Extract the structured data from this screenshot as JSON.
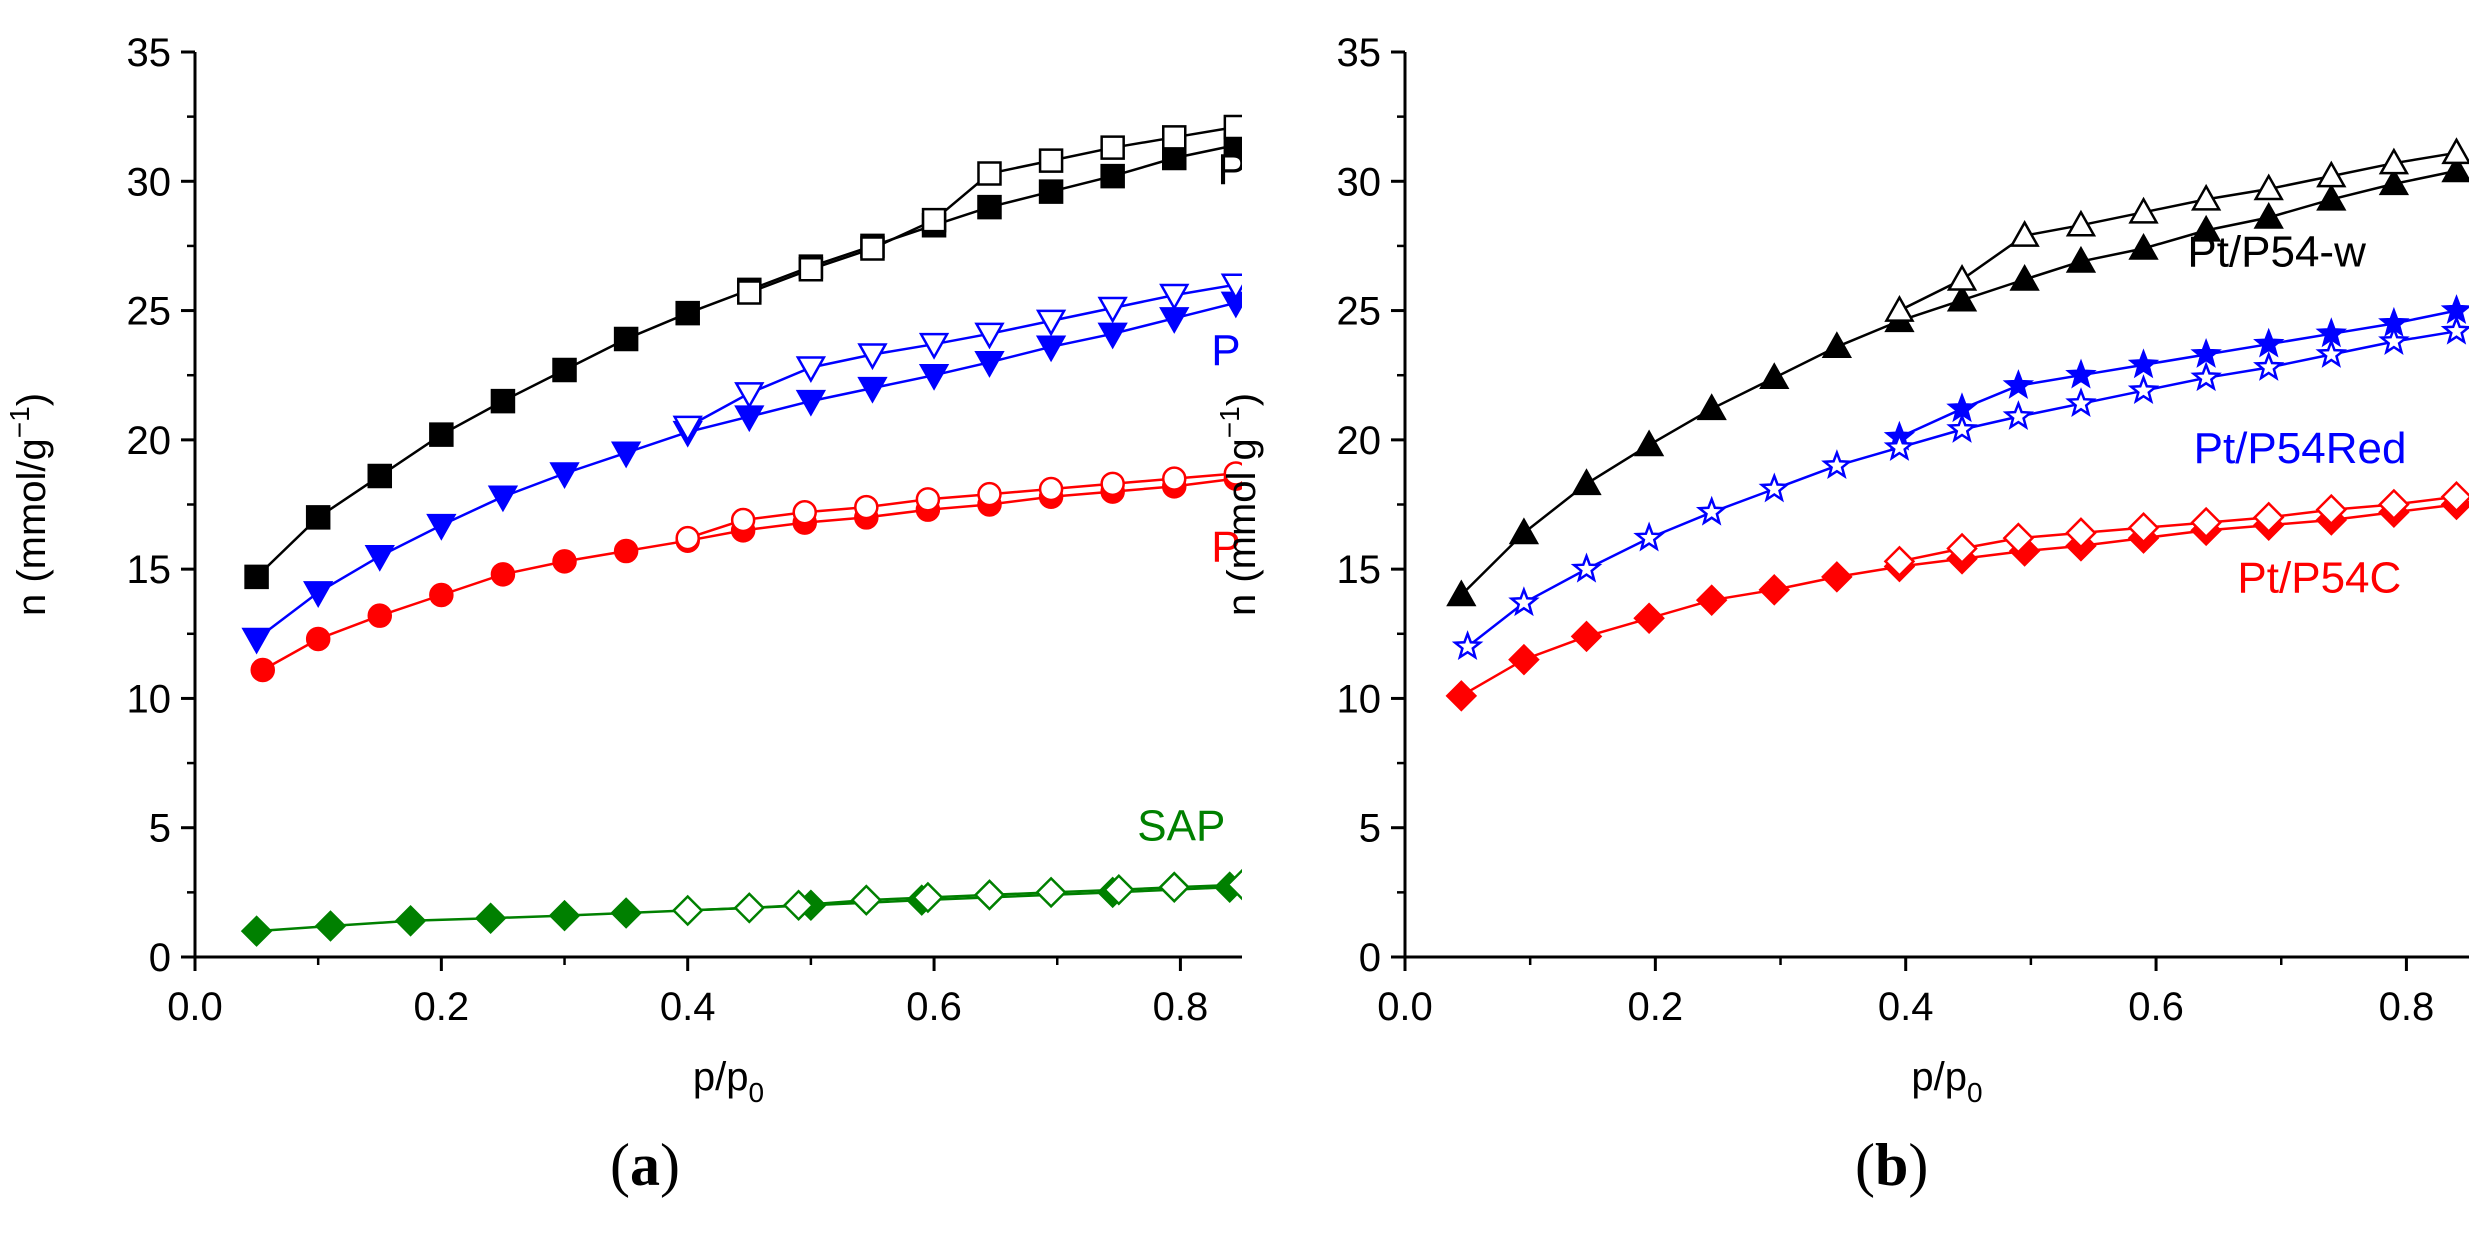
{
  "chart_data": [
    {
      "type": "line",
      "panel_label": "a",
      "xlabel": "p/p",
      "xlabel_sub": "0",
      "ylabel": "n (mmol/g",
      "ylabel_sup": "−1",
      "ylabel_close": ")",
      "xlim": [
        0.0,
        0.85
      ],
      "ylim": [
        0,
        35
      ],
      "xticks": [
        "0.0",
        "0.2",
        "0.4",
        "0.6",
        "0.8"
      ],
      "yticks": [
        "0",
        "5",
        "10",
        "15",
        "20",
        "25",
        "30",
        "35"
      ],
      "series": [
        {
          "name": "black-adsorption",
          "color": "#000000",
          "marker": "square",
          "filled": true,
          "x": [
            0.05,
            0.1,
            0.15,
            0.2,
            0.25,
            0.3,
            0.35,
            0.4,
            0.45,
            0.5,
            0.55,
            0.6,
            0.645,
            0.695,
            0.745,
            0.795,
            0.845
          ],
          "y": [
            14.7,
            17.0,
            18.6,
            20.2,
            21.5,
            22.7,
            23.9,
            24.9,
            25.8,
            26.7,
            27.5,
            28.3,
            29.0,
            29.6,
            30.2,
            30.9,
            31.4
          ]
        },
        {
          "name": "black-desorption",
          "color": "#000000",
          "marker": "square",
          "filled": false,
          "x": [
            0.45,
            0.5,
            0.55,
            0.6,
            0.645,
            0.695,
            0.745,
            0.795,
            0.845
          ],
          "y": [
            25.7,
            26.6,
            27.4,
            28.5,
            30.3,
            30.8,
            31.3,
            31.7,
            32.1
          ]
        },
        {
          "name": "blue-adsorption",
          "color": "#0000ff",
          "marker": "triangle-down",
          "filled": true,
          "x": [
            0.05,
            0.1,
            0.15,
            0.2,
            0.25,
            0.3,
            0.35,
            0.4,
            0.45,
            0.5,
            0.55,
            0.6,
            0.645,
            0.695,
            0.745,
            0.795,
            0.845
          ],
          "y": [
            12.3,
            14.1,
            15.5,
            16.7,
            17.8,
            18.7,
            19.5,
            20.3,
            20.9,
            21.5,
            22.0,
            22.5,
            23.0,
            23.6,
            24.1,
            24.7,
            25.3
          ]
        },
        {
          "name": "blue-desorption",
          "color": "#0000ff",
          "marker": "triangle-down",
          "filled": false,
          "x": [
            0.4,
            0.45,
            0.5,
            0.55,
            0.6,
            0.645,
            0.695,
            0.745,
            0.795,
            0.845
          ],
          "y": [
            20.5,
            21.8,
            22.8,
            23.3,
            23.7,
            24.1,
            24.6,
            25.1,
            25.6,
            26.0
          ]
        },
        {
          "name": "red-adsorption",
          "color": "#ff0000",
          "marker": "circle",
          "filled": true,
          "x": [
            0.055,
            0.1,
            0.15,
            0.2,
            0.25,
            0.3,
            0.35,
            0.4,
            0.445,
            0.495,
            0.545,
            0.595,
            0.645,
            0.695,
            0.745,
            0.795,
            0.845
          ],
          "y": [
            11.1,
            12.3,
            13.2,
            14.0,
            14.8,
            15.3,
            15.7,
            16.1,
            16.5,
            16.8,
            17.0,
            17.3,
            17.5,
            17.8,
            18.0,
            18.2,
            18.5
          ]
        },
        {
          "name": "red-desorption",
          "color": "#ff0000",
          "marker": "circle",
          "filled": false,
          "x": [
            0.4,
            0.445,
            0.495,
            0.545,
            0.595,
            0.645,
            0.695,
            0.745,
            0.795,
            0.845
          ],
          "y": [
            16.2,
            16.9,
            17.2,
            17.4,
            17.7,
            17.9,
            18.1,
            18.3,
            18.5,
            18.7
          ]
        },
        {
          "name": "green-adsorption",
          "color": "#008000",
          "marker": "diamond",
          "filled": true,
          "x": [
            0.05,
            0.11,
            0.175,
            0.24,
            0.3,
            0.35,
            0.5,
            0.59,
            0.745,
            0.84
          ],
          "y": [
            1.0,
            1.2,
            1.4,
            1.5,
            1.6,
            1.7,
            2.0,
            2.2,
            2.5,
            2.7
          ]
        },
        {
          "name": "green-desorption",
          "color": "#008000",
          "marker": "diamond",
          "filled": false,
          "x": [
            0.4,
            0.45,
            0.49,
            0.545,
            0.595,
            0.645,
            0.695,
            0.75,
            0.795,
            0.85
          ],
          "y": [
            1.8,
            1.9,
            2.0,
            2.2,
            2.3,
            2.4,
            2.5,
            2.6,
            2.7,
            2.8
          ]
        }
      ],
      "annotations": [
        {
          "text": "P",
          "color": "#000000",
          "x": 0.83,
          "y": 29.9
        },
        {
          "text": "P",
          "color": "#0000ff",
          "x": 0.825,
          "y": 22.9
        },
        {
          "text": "P",
          "color": "#ff0000",
          "x": 0.825,
          "y": 15.3
        },
        {
          "text": "SAP",
          "color": "#008000",
          "x": 0.765,
          "y": 4.5
        }
      ]
    },
    {
      "type": "line",
      "panel_label": "b",
      "xlabel": "p/p",
      "xlabel_sub": "0",
      "ylabel": "n (mmol g",
      "ylabel_sup": "−1",
      "ylabel_close": ")",
      "xlim": [
        0.0,
        0.85
      ],
      "ylim": [
        0,
        35
      ],
      "xticks": [
        "0.0",
        "0.2",
        "0.4",
        "0.6",
        "0.8"
      ],
      "yticks": [
        "0",
        "5",
        "10",
        "15",
        "20",
        "25",
        "30",
        "35"
      ],
      "series": [
        {
          "name": "black-adsorption",
          "color": "#000000",
          "marker": "triangle-up",
          "filled": true,
          "x": [
            0.045,
            0.095,
            0.145,
            0.195,
            0.245,
            0.295,
            0.345,
            0.395,
            0.445,
            0.495,
            0.54,
            0.59,
            0.64,
            0.69,
            0.74,
            0.79,
            0.84
          ],
          "y": [
            14.0,
            16.4,
            18.3,
            19.8,
            21.2,
            22.4,
            23.6,
            24.6,
            25.4,
            26.2,
            26.9,
            27.4,
            28.1,
            28.6,
            29.3,
            29.9,
            30.4
          ]
        },
        {
          "name": "black-desorption",
          "color": "#000000",
          "marker": "triangle-up",
          "filled": false,
          "x": [
            0.395,
            0.445,
            0.495,
            0.54,
            0.59,
            0.64,
            0.69,
            0.74,
            0.79,
            0.84
          ],
          "y": [
            25.0,
            26.2,
            27.9,
            28.3,
            28.8,
            29.3,
            29.7,
            30.2,
            30.7,
            31.1
          ]
        },
        {
          "name": "blue-adsorption",
          "color": "#0000ff",
          "marker": "star",
          "filled": true,
          "x": [
            0.395,
            0.445,
            0.49,
            0.54,
            0.59,
            0.64,
            0.69,
            0.74,
            0.79,
            0.84
          ],
          "y": [
            20.1,
            21.2,
            22.1,
            22.5,
            22.9,
            23.3,
            23.7,
            24.1,
            24.5,
            25.0
          ]
        },
        {
          "name": "blue-desorption",
          "color": "#0000ff",
          "marker": "star",
          "filled": false,
          "x": [
            0.05,
            0.095,
            0.145,
            0.195,
            0.245,
            0.295,
            0.345,
            0.395,
            0.445,
            0.49,
            0.54,
            0.59,
            0.64,
            0.69,
            0.74,
            0.79,
            0.84
          ],
          "y": [
            12.0,
            13.7,
            15.0,
            16.2,
            17.2,
            18.1,
            19.0,
            19.7,
            20.4,
            20.9,
            21.4,
            21.9,
            22.4,
            22.8,
            23.3,
            23.8,
            24.2
          ]
        },
        {
          "name": "red-adsorption",
          "color": "#ff0000",
          "marker": "diamond",
          "filled": true,
          "x": [
            0.045,
            0.095,
            0.145,
            0.195,
            0.245,
            0.295,
            0.345,
            0.395,
            0.445,
            0.495,
            0.54,
            0.59,
            0.64,
            0.69,
            0.74,
            0.79,
            0.84
          ],
          "y": [
            10.1,
            11.5,
            12.4,
            13.1,
            13.8,
            14.2,
            14.7,
            15.1,
            15.4,
            15.7,
            15.9,
            16.2,
            16.5,
            16.7,
            16.9,
            17.2,
            17.5
          ]
        },
        {
          "name": "red-desorption",
          "color": "#ff0000",
          "marker": "diamond",
          "filled": false,
          "x": [
            0.395,
            0.445,
            0.49,
            0.54,
            0.59,
            0.64,
            0.69,
            0.74,
            0.79,
            0.84
          ],
          "y": [
            15.3,
            15.8,
            16.2,
            16.4,
            16.6,
            16.8,
            17.0,
            17.3,
            17.5,
            17.8
          ]
        }
      ],
      "annotations": [
        {
          "text": "Pt/P54-w",
          "color": "#000000",
          "x": 0.625,
          "y": 26.7
        },
        {
          "text": "Pt/P54Red",
          "color": "#0000ff",
          "x": 0.63,
          "y": 19.1
        },
        {
          "text": "Pt/P54C",
          "color": "#ff0000",
          "x": 0.665,
          "y": 14.1
        }
      ]
    }
  ]
}
